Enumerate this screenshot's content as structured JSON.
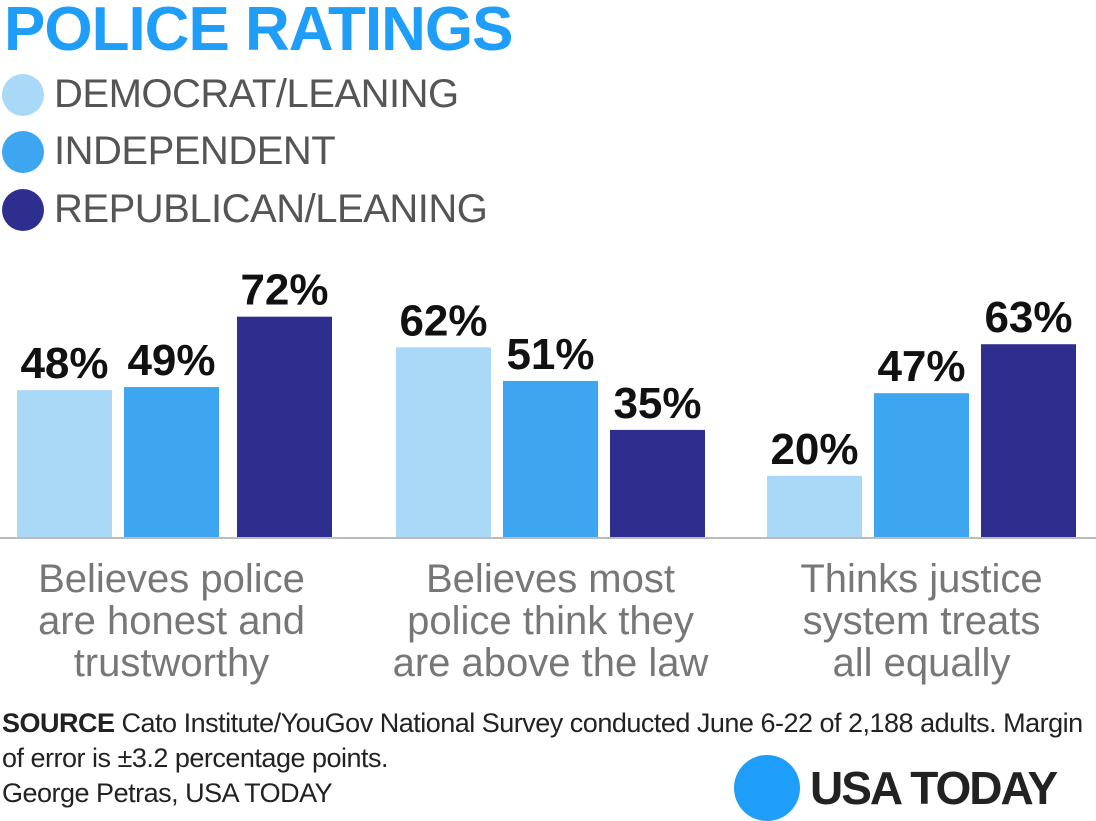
{
  "chart_data": {
    "type": "bar",
    "title": "POLICE RATINGS",
    "categories": [
      [
        "Believes police",
        "are honest and",
        "trustworthy"
      ],
      [
        "Believes most",
        "police think they",
        "are above the law"
      ],
      [
        "Thinks justice",
        "system treats",
        "all equally"
      ]
    ],
    "series": [
      {
        "name": "DEMOCRAT/LEANING",
        "color": "#aad9f8",
        "values": [
          48,
          62,
          20
        ]
      },
      {
        "name": "INDEPENDENT",
        "color": "#3ea6f0",
        "values": [
          49,
          51,
          47
        ]
      },
      {
        "name": "REPUBLICAN/LEANING",
        "color": "#2e2e8e",
        "values": [
          72,
          35,
          63
        ]
      }
    ],
    "value_suffix": "%",
    "ylim": [
      0,
      100
    ],
    "grid": false,
    "legend": "top-left"
  },
  "footer": {
    "source_label": "SOURCE",
    "source_text": "Cato Institute/YouGov National Survey conducted June 6-22 of 2,188 adults. Margin of error is ±3.2 percentage points.",
    "credit": "George Petras, USA TODAY"
  },
  "logo": {
    "text": "USA TODAY",
    "color": "#1e9ef8"
  }
}
